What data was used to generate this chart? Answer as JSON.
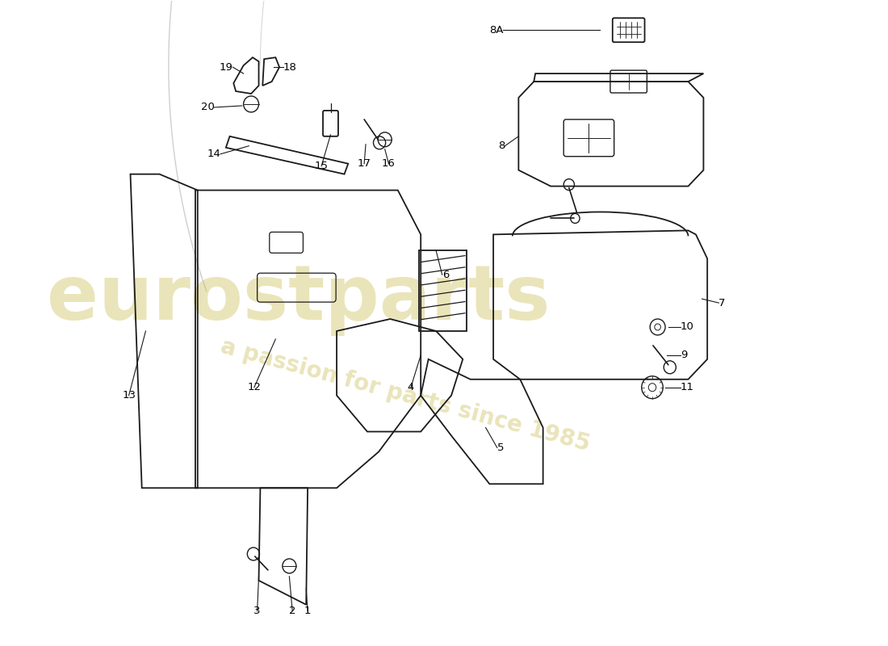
{
  "background_color": "#ffffff",
  "watermark_text1": "eurostparts",
  "watermark_text2": "a passion for parts since 1985",
  "watermark_color": "#c8b84a",
  "watermark_alpha": 0.38,
  "line_color": "#1a1a1a",
  "label_color": "#000000",
  "fig_width": 11.0,
  "fig_height": 8.0
}
